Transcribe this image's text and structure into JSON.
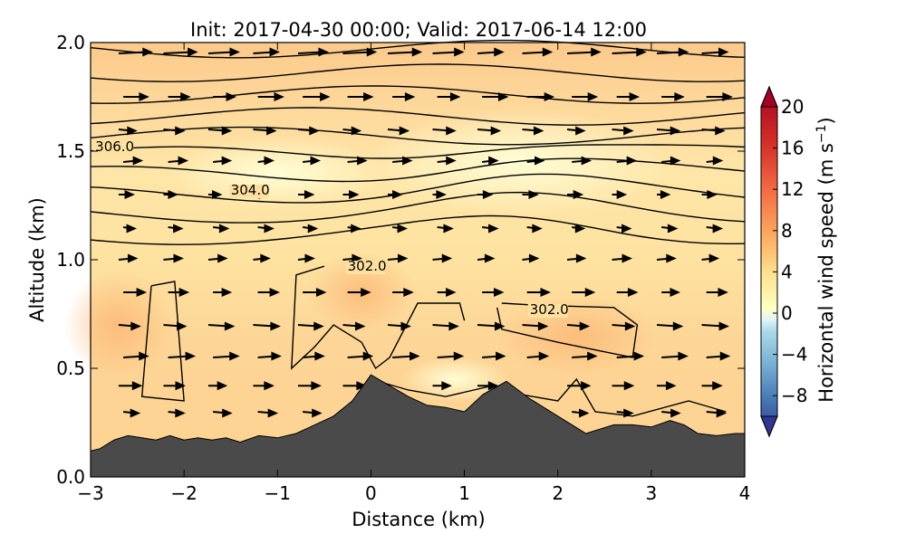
{
  "chart_data": {
    "type": "heatmap",
    "title": "Init: 2017-04-30 00:00; Valid: 2017-06-14 12:00",
    "xlabel": "Distance (km)",
    "ylabel": "Altitude (km)",
    "xlim": [
      -3,
      4
    ],
    "ylim": [
      0,
      2.0
    ],
    "x_ticks": [
      "−3",
      "−2",
      "−1",
      "0",
      "1",
      "2",
      "3",
      "4"
    ],
    "x_tick_values": [
      -3,
      -2,
      -1,
      0,
      1,
      2,
      3,
      4
    ],
    "y_ticks": [
      "0.0",
      "0.5",
      "1.0",
      "1.5",
      "2.0"
    ],
    "y_tick_values": [
      0,
      0.5,
      1.0,
      1.5,
      2.0
    ],
    "colorbar": {
      "label": "Horizontal wind speed (m s",
      "label_exponent": "−1",
      "label_close": ")",
      "range": [
        -10,
        20
      ],
      "extend": "both",
      "ticks": [
        "−8",
        "−4",
        "0",
        "4",
        "8",
        "12",
        "16",
        "20"
      ],
      "tick_values": [
        -8,
        -4,
        0,
        4,
        8,
        12,
        16,
        20
      ],
      "colors": [
        {
          "value": -10,
          "color": "#313695"
        },
        {
          "value": -7,
          "color": "#4575b4"
        },
        {
          "value": -4,
          "color": "#74add1"
        },
        {
          "value": -1,
          "color": "#abd9e9"
        },
        {
          "value": 0,
          "color": "#e0f3f8"
        },
        {
          "value": 1,
          "color": "#ffffbf"
        },
        {
          "value": 4,
          "color": "#fee090"
        },
        {
          "value": 7,
          "color": "#fdae61"
        },
        {
          "value": 11,
          "color": "#f46d43"
        },
        {
          "value": 15,
          "color": "#d73027"
        },
        {
          "value": 20,
          "color": "#a50026"
        }
      ]
    },
    "contour_labels": [
      {
        "text": "306.0",
        "x": -2.95,
        "y": 1.5
      },
      {
        "text": "304.0",
        "x": -1.5,
        "y": 1.3
      },
      {
        "text": "302.0",
        "x": -0.25,
        "y": 0.95
      },
      {
        "text": "302.0",
        "x": 1.7,
        "y": 0.75
      }
    ],
    "terrain": {
      "x": [
        -3,
        -2.9,
        -2.75,
        -2.6,
        -2.45,
        -2.3,
        -2.15,
        -2.0,
        -1.85,
        -1.7,
        -1.55,
        -1.4,
        -1.2,
        -1.0,
        -0.8,
        -0.6,
        -0.4,
        -0.2,
        0.0,
        0.2,
        0.4,
        0.6,
        0.8,
        1.0,
        1.2,
        1.45,
        1.7,
        2.0,
        2.3,
        2.6,
        2.8,
        3.0,
        3.2,
        3.35,
        3.5,
        3.7,
        3.9,
        4.0
      ],
      "y": [
        0.12,
        0.13,
        0.17,
        0.19,
        0.18,
        0.17,
        0.19,
        0.17,
        0.18,
        0.17,
        0.18,
        0.16,
        0.19,
        0.18,
        0.2,
        0.24,
        0.28,
        0.35,
        0.47,
        0.42,
        0.37,
        0.33,
        0.32,
        0.3,
        0.38,
        0.44,
        0.36,
        0.28,
        0.2,
        0.24,
        0.24,
        0.23,
        0.26,
        0.24,
        0.2,
        0.19,
        0.2,
        0.2
      ]
    },
    "wind_field_rows": [
      {
        "y": 1.95,
        "u": 8
      },
      {
        "y": 1.75,
        "u": 6
      },
      {
        "y": 1.6,
        "u": 5
      },
      {
        "y": 1.45,
        "u": 4
      },
      {
        "y": 1.3,
        "u": 3
      },
      {
        "y": 1.15,
        "u": 3
      },
      {
        "y": 1.0,
        "u": 4
      },
      {
        "y": 0.85,
        "u": 5
      },
      {
        "y": 0.7,
        "u": 6
      },
      {
        "y": 0.55,
        "u": 6
      },
      {
        "y": 0.42,
        "u": 5
      },
      {
        "y": 0.3,
        "u": 4
      }
    ]
  }
}
